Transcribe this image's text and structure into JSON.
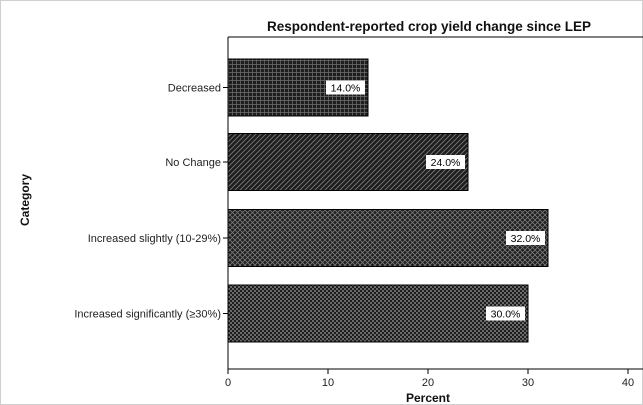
{
  "chart_data": {
    "type": "bar",
    "orientation": "horizontal",
    "title": "Respondent-reported crop yield change since LEP",
    "xlabel": "Percent",
    "ylabel": "Category",
    "categories": [
      "Decreased",
      "No Change",
      "Increased slightly (10-29%)",
      "Increased significantly (≥30%)"
    ],
    "values": [
      14.0,
      24.0,
      32.0,
      30.0
    ],
    "data_labels": [
      "14.0%",
      "24.0%",
      "32.0%",
      "30.0%"
    ],
    "xlim": [
      0,
      40
    ],
    "xticks": [
      0,
      10,
      20,
      30,
      40
    ],
    "grid": false,
    "bar_color": "#2a2a2a"
  }
}
